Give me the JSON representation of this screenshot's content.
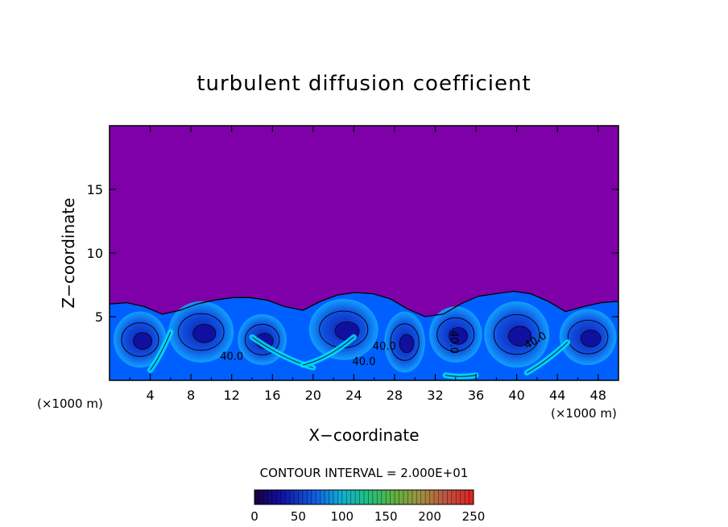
{
  "chart_data": {
    "type": "heatmap",
    "title": "turbulent diffusion coefficient",
    "xlabel": "X−coordinate",
    "ylabel": "Z−coordinate",
    "x_unit_left": "(×1000 m)",
    "x_unit_right": "(×1000 m)",
    "xlim": [
      0,
      50
    ],
    "ylim": [
      0,
      20
    ],
    "x_ticks": [
      4,
      8,
      12,
      16,
      20,
      24,
      28,
      32,
      36,
      40,
      44,
      48
    ],
    "y_ticks": [
      5,
      10,
      15
    ],
    "contour_interval_text": "CONTOUR INTERVAL = 2.000E+01",
    "contour_labels": [
      "40.0",
      "40.0",
      "40.0",
      "40.0",
      "40.0"
    ],
    "colorbar": {
      "min": 0,
      "max": 250,
      "tick_values": [
        0,
        50,
        100,
        150,
        200,
        250
      ],
      "tick_labels": [
        "0",
        "50",
        "100",
        "150",
        "200",
        "250"
      ]
    },
    "background_value": 0,
    "boundary_layer_top_z": [
      6.0,
      6.1,
      5.8,
      5.2,
      5.5,
      6.0,
      6.3,
      6.5,
      6.5,
      6.3,
      5.8,
      5.5,
      6.2,
      6.7,
      6.9,
      6.8,
      6.4,
      5.6,
      5.0,
      5.2,
      6.0,
      6.6,
      6.8,
      7.0,
      6.8,
      6.2,
      5.4,
      5.8,
      6.1,
      6.2
    ],
    "boundary_layer_x": [
      0,
      1.7,
      3.4,
      5.2,
      6.9,
      8.6,
      10.3,
      12.1,
      13.8,
      15.5,
      17.2,
      19.0,
      20.7,
      22.4,
      24.1,
      25.9,
      27.6,
      29.3,
      31.0,
      32.8,
      34.5,
      36.2,
      37.9,
      39.7,
      41.4,
      43.1,
      44.8,
      46.6,
      48.3,
      50
    ],
    "colors": {
      "background": "#7f00a8",
      "low": "#1010a0",
      "mid": "#0060ff",
      "high": "#00e0ff"
    }
  }
}
